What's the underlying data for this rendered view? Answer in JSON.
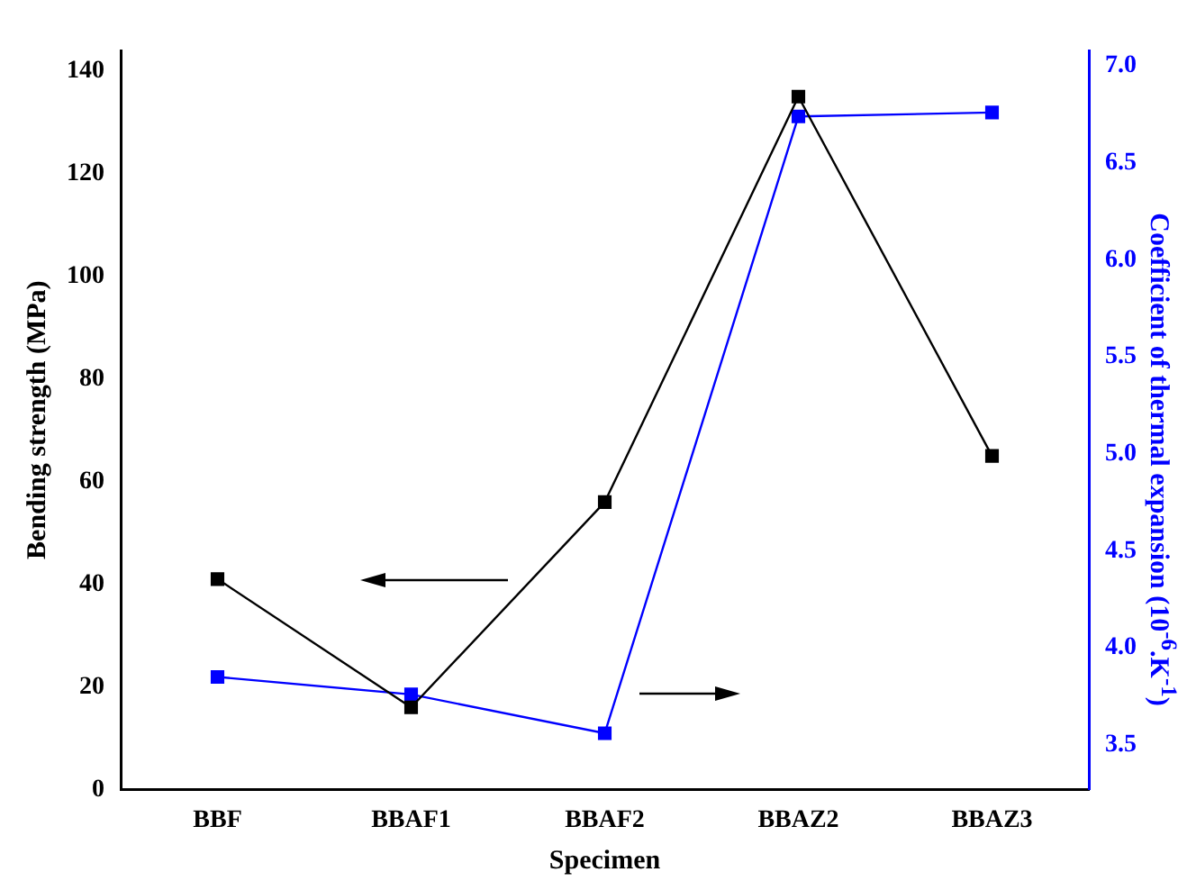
{
  "chart_data": {
    "type": "line",
    "xlabel": "Specimen",
    "ylabel": "Bending strength (MPa)",
    "y2label": "Coefficient of thermal expansion (10$^{-6}$.K$^{-1}$)",
    "categories": [
      "BBF",
      "BBAF1",
      "BBAF2",
      "BBAZ2",
      "BBAZ3"
    ],
    "series": [
      {
        "color": "#000000",
        "values": [
          41,
          16,
          56,
          135,
          65
        ]
      },
      {
        "color": "#0000ff",
        "axis": "y2",
        "values": [
          3.85,
          3.76,
          3.56,
          6.74,
          6.76
        ]
      }
    ],
    "ylim": [
      0,
      144
    ],
    "yticks": [
      0,
      20,
      40,
      60,
      80,
      100,
      120,
      140
    ],
    "y2lim": [
      3.27,
      7.08
    ],
    "y2ticks": [
      {
        "value": 3.5,
        "label": "3.5"
      },
      {
        "value": 4,
        "label": "4.0"
      },
      {
        "value": 4.5,
        "label": "4.5"
      },
      {
        "value": 5,
        "label": "5.0"
      },
      {
        "value": 5.5,
        "label": "5.5"
      },
      {
        "value": 6,
        "label": "6.0"
      },
      {
        "value": 6.5,
        "label": "6.5"
      },
      {
        "value": 7,
        "label": "7.0"
      }
    ],
    "marker": "square",
    "line_style": "solid",
    "grid": false,
    "legend": false
  }
}
